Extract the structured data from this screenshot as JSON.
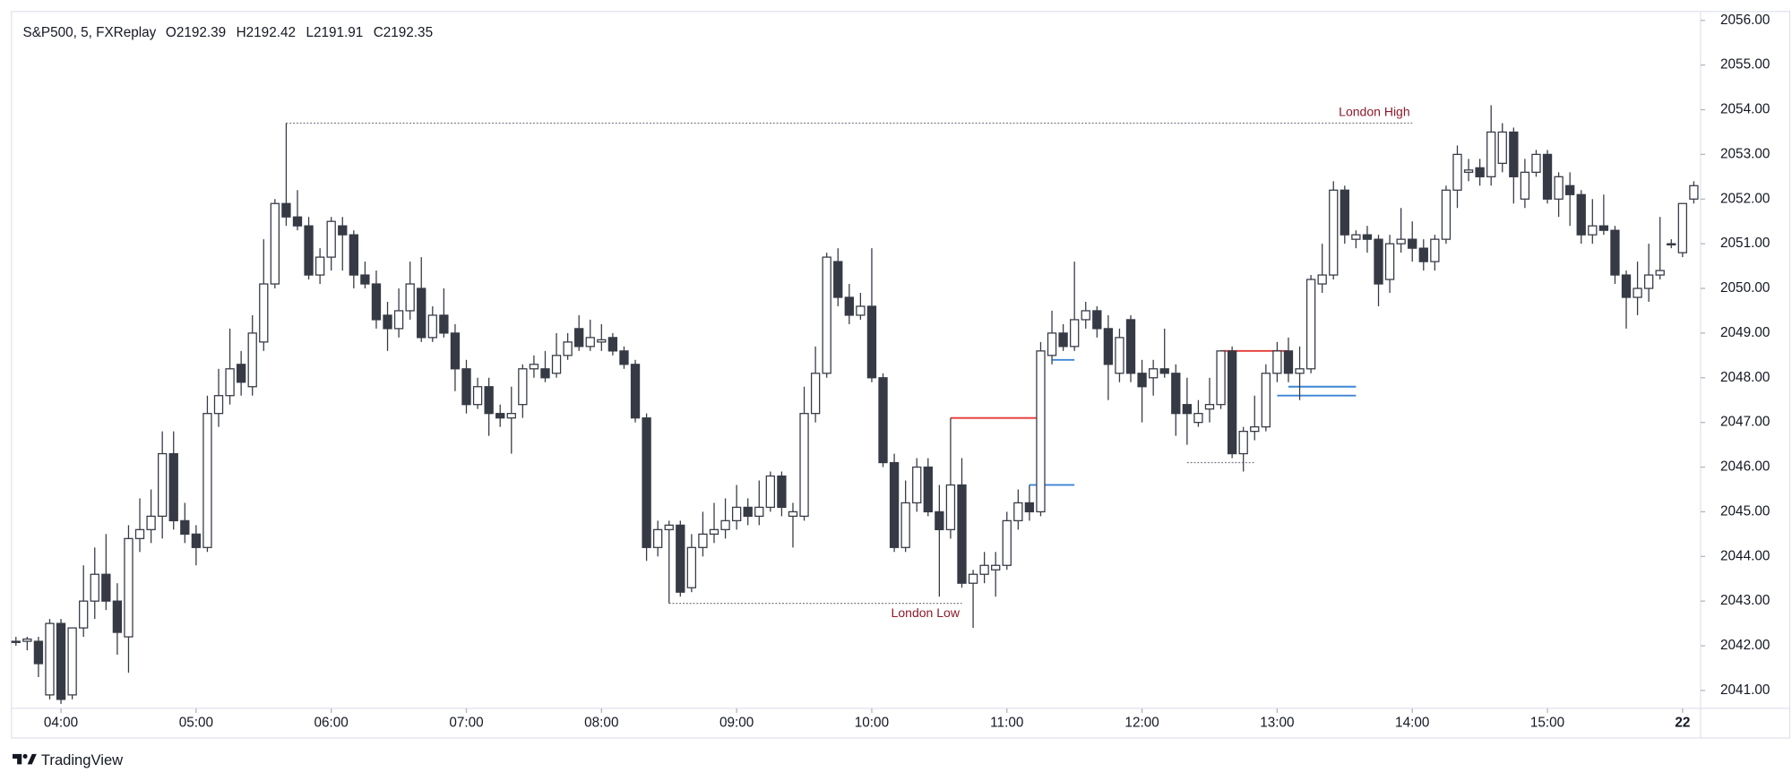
{
  "chart_data": {
    "type": "candlestick",
    "legend": {
      "symbol": "S&P500, 5, FXReplay",
      "values": [
        "O2192.39",
        "H2192.42",
        "L2191.91",
        "C2192.35"
      ]
    },
    "up_color": "#ffffff",
    "down_color": "#363a45",
    "wick_color": "#363a45",
    "xlim": [
      -0.4,
      149.6
    ],
    "ylim": [
      2040.6,
      2056.2
    ],
    "yticks": [
      {
        "value": 2041,
        "label": "2041.00"
      },
      {
        "value": 2042,
        "label": "2042.00"
      },
      {
        "value": 2043,
        "label": "2043.00"
      },
      {
        "value": 2044,
        "label": "2044.00"
      },
      {
        "value": 2045,
        "label": "2045.00"
      },
      {
        "value": 2046,
        "label": "2046.00"
      },
      {
        "value": 2047,
        "label": "2047.00"
      },
      {
        "value": 2048,
        "label": "2048.00"
      },
      {
        "value": 2049,
        "label": "2049.00"
      },
      {
        "value": 2050,
        "label": "2050.00"
      },
      {
        "value": 2051,
        "label": "2051.00"
      },
      {
        "value": 2052,
        "label": "2052.00"
      },
      {
        "value": 2053,
        "label": "2053.00"
      },
      {
        "value": 2054,
        "label": "2054.00"
      },
      {
        "value": 2055,
        "label": "2055.00"
      },
      {
        "value": 2056,
        "label": "2056.00"
      }
    ],
    "xticks": [
      {
        "value": 4,
        "label": "04:00"
      },
      {
        "value": 16,
        "label": "05:00"
      },
      {
        "value": 28,
        "label": "06:00"
      },
      {
        "value": 40,
        "label": "07:00"
      },
      {
        "value": 52,
        "label": "08:00"
      },
      {
        "value": 64,
        "label": "09:00"
      },
      {
        "value": 76,
        "label": "10:00"
      },
      {
        "value": 88,
        "label": "11:00"
      },
      {
        "value": 100,
        "label": "12:00"
      },
      {
        "value": 112,
        "label": "13:00"
      },
      {
        "value": 124,
        "label": "14:00"
      },
      {
        "value": 136,
        "label": "15:00"
      },
      {
        "value": 148,
        "label": "22",
        "bold": true
      }
    ],
    "ohlc": [
      [
        2042.1,
        2042.2,
        2042.0,
        2042.1
      ],
      [
        2042.1,
        2042.2,
        2041.9,
        2042.15
      ],
      [
        2042.1,
        2042.2,
        2041.3,
        2041.6
      ],
      [
        2040.9,
        2042.6,
        2040.8,
        2042.5
      ],
      [
        2042.5,
        2042.6,
        2040.7,
        2040.8
      ],
      [
        2040.9,
        2042.4,
        2040.8,
        2042.4
      ],
      [
        2042.4,
        2043.8,
        2042.2,
        2043.0
      ],
      [
        2043.0,
        2044.2,
        2042.6,
        2043.6
      ],
      [
        2043.6,
        2044.5,
        2042.8,
        2043.0
      ],
      [
        2043.0,
        2043.4,
        2041.8,
        2042.3
      ],
      [
        2042.2,
        2044.7,
        2041.4,
        2044.4
      ],
      [
        2044.4,
        2045.3,
        2044.1,
        2044.6
      ],
      [
        2044.6,
        2045.5,
        2044.3,
        2044.9
      ],
      [
        2044.9,
        2046.8,
        2044.4,
        2046.3
      ],
      [
        2046.3,
        2046.8,
        2044.6,
        2044.8
      ],
      [
        2044.8,
        2045.2,
        2044.3,
        2044.5
      ],
      [
        2044.5,
        2044.7,
        2043.8,
        2044.2
      ],
      [
        2044.2,
        2047.6,
        2044.1,
        2047.2
      ],
      [
        2047.2,
        2048.2,
        2046.9,
        2047.6
      ],
      [
        2047.6,
        2049.1,
        2047.4,
        2048.2
      ],
      [
        2048.3,
        2048.6,
        2047.6,
        2047.9
      ],
      [
        2047.8,
        2049.4,
        2047.6,
        2049.0
      ],
      [
        2048.8,
        2051.1,
        2048.6,
        2050.1
      ],
      [
        2050.1,
        2052.0,
        2050.0,
        2051.9
      ],
      [
        2051.9,
        2053.7,
        2051.4,
        2051.6
      ],
      [
        2051.6,
        2052.2,
        2051.3,
        2051.4
      ],
      [
        2051.4,
        2051.6,
        2050.2,
        2050.3
      ],
      [
        2050.3,
        2050.9,
        2050.1,
        2050.7
      ],
      [
        2050.7,
        2051.6,
        2050.4,
        2051.5
      ],
      [
        2051.4,
        2051.6,
        2050.4,
        2051.2
      ],
      [
        2051.2,
        2051.3,
        2050.0,
        2050.3
      ],
      [
        2050.3,
        2050.6,
        2050.0,
        2050.1
      ],
      [
        2050.1,
        2050.4,
        2049.1,
        2049.3
      ],
      [
        2049.4,
        2049.7,
        2048.6,
        2049.1
      ],
      [
        2049.1,
        2050.0,
        2048.9,
        2049.5
      ],
      [
        2049.5,
        2050.6,
        2049.3,
        2050.1
      ],
      [
        2050.0,
        2050.7,
        2048.8,
        2048.9
      ],
      [
        2048.9,
        2049.6,
        2048.8,
        2049.4
      ],
      [
        2049.4,
        2050.0,
        2048.9,
        2049.0
      ],
      [
        2049.0,
        2049.2,
        2047.7,
        2048.2
      ],
      [
        2048.2,
        2048.4,
        2047.2,
        2047.4
      ],
      [
        2047.4,
        2048.0,
        2047.3,
        2047.8
      ],
      [
        2047.8,
        2048.0,
        2046.7,
        2047.2
      ],
      [
        2047.2,
        2047.4,
        2046.9,
        2047.1
      ],
      [
        2047.1,
        2047.8,
        2046.3,
        2047.2
      ],
      [
        2047.4,
        2048.3,
        2047.1,
        2048.2
      ],
      [
        2048.2,
        2048.5,
        2048.0,
        2048.3
      ],
      [
        2048.2,
        2048.6,
        2047.9,
        2048.0
      ],
      [
        2048.1,
        2049.0,
        2048.0,
        2048.5
      ],
      [
        2048.5,
        2049.0,
        2048.4,
        2048.8
      ],
      [
        2049.1,
        2049.4,
        2048.6,
        2048.7
      ],
      [
        2048.7,
        2049.3,
        2048.6,
        2048.9
      ],
      [
        2048.8,
        2049.2,
        2048.6,
        2048.85
      ],
      [
        2048.9,
        2049.0,
        2048.5,
        2048.6
      ],
      [
        2048.6,
        2048.7,
        2048.2,
        2048.3
      ],
      [
        2048.3,
        2048.4,
        2047.0,
        2047.1
      ],
      [
        2047.1,
        2047.2,
        2043.9,
        2044.2
      ],
      [
        2044.2,
        2044.8,
        2044.0,
        2044.6
      ],
      [
        2044.6,
        2044.8,
        2042.95,
        2044.7
      ],
      [
        2044.7,
        2044.8,
        2043.1,
        2043.2
      ],
      [
        2043.3,
        2044.5,
        2043.2,
        2044.2
      ],
      [
        2044.2,
        2045.0,
        2044.0,
        2044.5
      ],
      [
        2044.5,
        2045.2,
        2044.3,
        2044.6
      ],
      [
        2044.6,
        2045.3,
        2044.4,
        2044.8
      ],
      [
        2044.8,
        2045.6,
        2044.6,
        2045.1
      ],
      [
        2045.1,
        2045.3,
        2044.7,
        2044.9
      ],
      [
        2044.9,
        2045.7,
        2044.7,
        2045.1
      ],
      [
        2045.1,
        2045.9,
        2045.0,
        2045.8
      ],
      [
        2045.8,
        2045.9,
        2044.9,
        2045.1
      ],
      [
        2044.9,
        2045.2,
        2044.2,
        2045.0
      ],
      [
        2044.9,
        2047.8,
        2044.8,
        2047.2
      ],
      [
        2047.2,
        2048.7,
        2047.0,
        2048.1
      ],
      [
        2048.1,
        2050.8,
        2048.0,
        2050.7
      ],
      [
        2050.6,
        2050.9,
        2049.6,
        2049.8
      ],
      [
        2049.8,
        2050.1,
        2049.2,
        2049.4
      ],
      [
        2049.4,
        2049.9,
        2049.3,
        2049.6
      ],
      [
        2049.6,
        2050.9,
        2047.9,
        2048.0
      ],
      [
        2048.0,
        2048.1,
        2046.0,
        2046.1
      ],
      [
        2046.1,
        2046.3,
        2044.1,
        2044.2
      ],
      [
        2044.2,
        2045.7,
        2044.1,
        2045.2
      ],
      [
        2045.2,
        2046.2,
        2045.0,
        2046.0
      ],
      [
        2046.0,
        2046.2,
        2044.9,
        2045.0
      ],
      [
        2045.0,
        2045.6,
        2043.1,
        2044.6
      ],
      [
        2044.6,
        2047.1,
        2044.4,
        2045.6
      ],
      [
        2045.6,
        2046.2,
        2043.3,
        2043.4
      ],
      [
        2043.4,
        2043.7,
        2042.4,
        2043.6
      ],
      [
        2043.6,
        2044.1,
        2043.4,
        2043.8
      ],
      [
        2043.7,
        2044.1,
        2043.1,
        2043.8
      ],
      [
        2043.8,
        2045.0,
        2043.7,
        2044.8
      ],
      [
        2044.8,
        2045.5,
        2044.6,
        2045.2
      ],
      [
        2045.2,
        2045.6,
        2044.8,
        2045.0
      ],
      [
        2045.0,
        2048.8,
        2044.9,
        2048.6
      ],
      [
        2048.5,
        2049.5,
        2048.3,
        2049.0
      ],
      [
        2049.0,
        2049.2,
        2048.6,
        2048.7
      ],
      [
        2048.7,
        2050.6,
        2048.6,
        2049.3
      ],
      [
        2049.3,
        2049.7,
        2049.1,
        2049.5
      ],
      [
        2049.5,
        2049.6,
        2048.9,
        2049.1
      ],
      [
        2049.1,
        2049.4,
        2047.5,
        2048.3
      ],
      [
        2048.1,
        2049.1,
        2047.9,
        2048.9
      ],
      [
        2049.3,
        2049.4,
        2047.9,
        2048.1
      ],
      [
        2048.1,
        2048.4,
        2047.0,
        2047.8
      ],
      [
        2048.0,
        2048.4,
        2047.6,
        2048.2
      ],
      [
        2048.2,
        2049.1,
        2048.0,
        2048.1
      ],
      [
        2048.1,
        2048.3,
        2046.7,
        2047.2
      ],
      [
        2047.4,
        2048.0,
        2046.5,
        2047.2
      ],
      [
        2047.0,
        2047.5,
        2046.9,
        2047.2
      ],
      [
        2047.3,
        2048.0,
        2047.0,
        2047.4
      ],
      [
        2047.4,
        2048.6,
        2047.3,
        2048.6
      ],
      [
        2048.6,
        2048.7,
        2046.2,
        2046.3
      ],
      [
        2046.3,
        2046.9,
        2045.9,
        2046.8
      ],
      [
        2046.8,
        2047.6,
        2046.6,
        2046.9
      ],
      [
        2046.9,
        2048.3,
        2046.8,
        2048.1
      ],
      [
        2048.1,
        2048.8,
        2047.9,
        2048.6
      ],
      [
        2048.6,
        2048.9,
        2047.9,
        2048.1
      ],
      [
        2048.1,
        2048.7,
        2047.5,
        2048.2
      ],
      [
        2048.2,
        2050.3,
        2048.1,
        2050.2
      ],
      [
        2050.1,
        2051.0,
        2049.9,
        2050.3
      ],
      [
        2050.3,
        2052.4,
        2050.2,
        2052.2
      ],
      [
        2052.2,
        2052.3,
        2051.0,
        2051.2
      ],
      [
        2051.1,
        2051.3,
        2050.9,
        2051.2
      ],
      [
        2051.2,
        2051.4,
        2050.8,
        2051.1
      ],
      [
        2051.1,
        2051.2,
        2049.6,
        2050.1
      ],
      [
        2050.2,
        2051.2,
        2049.9,
        2051.0
      ],
      [
        2051.0,
        2051.8,
        2050.8,
        2051.1
      ],
      [
        2051.1,
        2051.5,
        2050.6,
        2050.9
      ],
      [
        2050.9,
        2051.1,
        2050.4,
        2050.6
      ],
      [
        2050.6,
        2051.2,
        2050.4,
        2051.1
      ],
      [
        2051.1,
        2052.3,
        2051.0,
        2052.2
      ],
      [
        2052.2,
        2053.2,
        2051.8,
        2053.0
      ],
      [
        2052.6,
        2052.9,
        2052.4,
        2052.65
      ],
      [
        2052.7,
        2052.9,
        2052.3,
        2052.5
      ],
      [
        2052.5,
        2054.1,
        2052.3,
        2053.5
      ],
      [
        2052.8,
        2053.7,
        2052.6,
        2053.5
      ],
      [
        2053.5,
        2053.6,
        2051.9,
        2052.5
      ],
      [
        2052.0,
        2052.9,
        2051.8,
        2052.6
      ],
      [
        2052.6,
        2053.1,
        2052.5,
        2053.0
      ],
      [
        2053.0,
        2053.1,
        2051.9,
        2052.0
      ],
      [
        2052.0,
        2052.6,
        2051.6,
        2052.5
      ],
      [
        2052.3,
        2052.6,
        2051.4,
        2052.1
      ],
      [
        2052.1,
        2052.2,
        2051.0,
        2051.2
      ],
      [
        2051.2,
        2052.0,
        2051.0,
        2051.4
      ],
      [
        2051.4,
        2052.1,
        2051.2,
        2051.3
      ],
      [
        2051.3,
        2051.4,
        2050.1,
        2050.3
      ],
      [
        2050.3,
        2050.4,
        2049.1,
        2049.8
      ],
      [
        2049.8,
        2050.6,
        2049.4,
        2050.0
      ],
      [
        2050.0,
        2051.0,
        2049.7,
        2050.3
      ],
      [
        2050.3,
        2051.6,
        2050.2,
        2050.4
      ],
      [
        2051.0,
        2051.1,
        2050.9,
        2051.0
      ],
      [
        2050.8,
        2051.9,
        2050.7,
        2051.9
      ],
      [
        2052.0,
        2052.4,
        2051.9,
        2052.3
      ]
    ],
    "levels": [
      {
        "label": "London High",
        "label_position": "above",
        "value": 2053.7,
        "x": [
          24,
          124
        ],
        "color": "#787b86",
        "label_color": "#8b1a2b",
        "style": "dotted"
      },
      {
        "label": "London Low",
        "label_position": "below",
        "value": 2042.95,
        "x": [
          58,
          84
        ],
        "color": "#787b86",
        "label_color": "#8b1a2b",
        "style": "dotted"
      },
      {
        "value": 2047.1,
        "x": [
          83,
          91
        ],
        "color": "#e53935",
        "style": "solid"
      },
      {
        "value": 2045.6,
        "x": [
          90,
          94
        ],
        "color": "#3d85d6",
        "style": "solid"
      },
      {
        "value": 2048.4,
        "x": [
          92,
          94
        ],
        "color": "#3d85d6",
        "style": "solid"
      },
      {
        "value": 2048.6,
        "x": [
          107,
          113
        ],
        "color": "#e53935",
        "style": "solid"
      },
      {
        "value": 2047.8,
        "x": [
          113,
          119
        ],
        "color": "#3d85d6",
        "style": "solid"
      },
      {
        "value": 2047.6,
        "x": [
          112,
          119
        ],
        "color": "#3d85d6",
        "style": "solid"
      },
      {
        "value": 2046.1,
        "x": [
          104,
          110
        ],
        "color": "#787b86",
        "style": "dotted"
      }
    ]
  },
  "branding": "TradingView"
}
